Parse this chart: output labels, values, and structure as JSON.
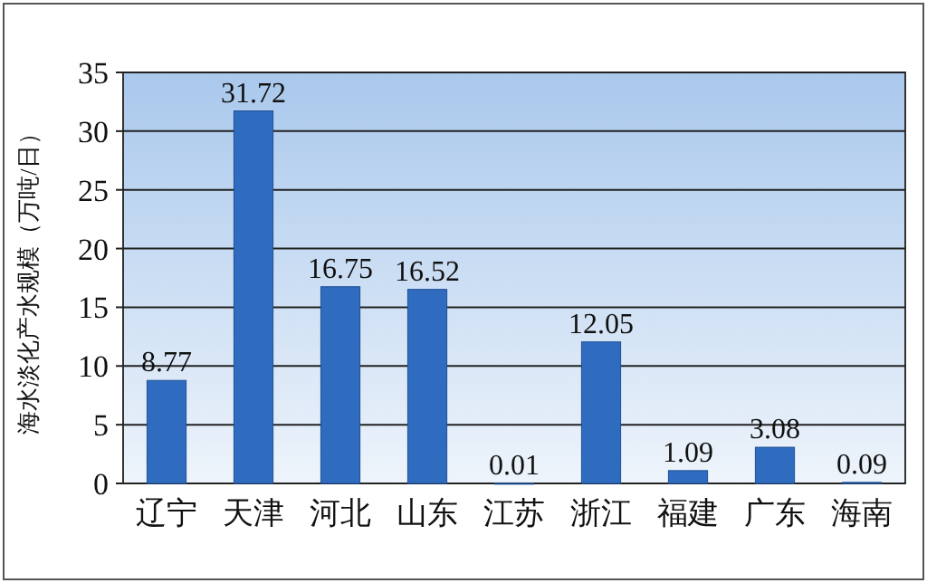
{
  "chart_data": {
    "type": "bar",
    "ylabel": "海水淡化产水规模（万吨/日）",
    "categories": [
      "辽宁",
      "天津",
      "河北",
      "山东",
      "江苏",
      "浙江",
      "福建",
      "广东",
      "海南"
    ],
    "values": [
      8.77,
      31.72,
      16.75,
      16.52,
      0.01,
      12.05,
      1.09,
      3.08,
      0.09
    ],
    "color": "#2f6cc0",
    "ylim": [
      0,
      35
    ],
    "yticks": [
      0,
      5,
      10,
      15,
      20,
      25,
      30,
      35
    ],
    "grid": "y",
    "data_labels": true
  }
}
